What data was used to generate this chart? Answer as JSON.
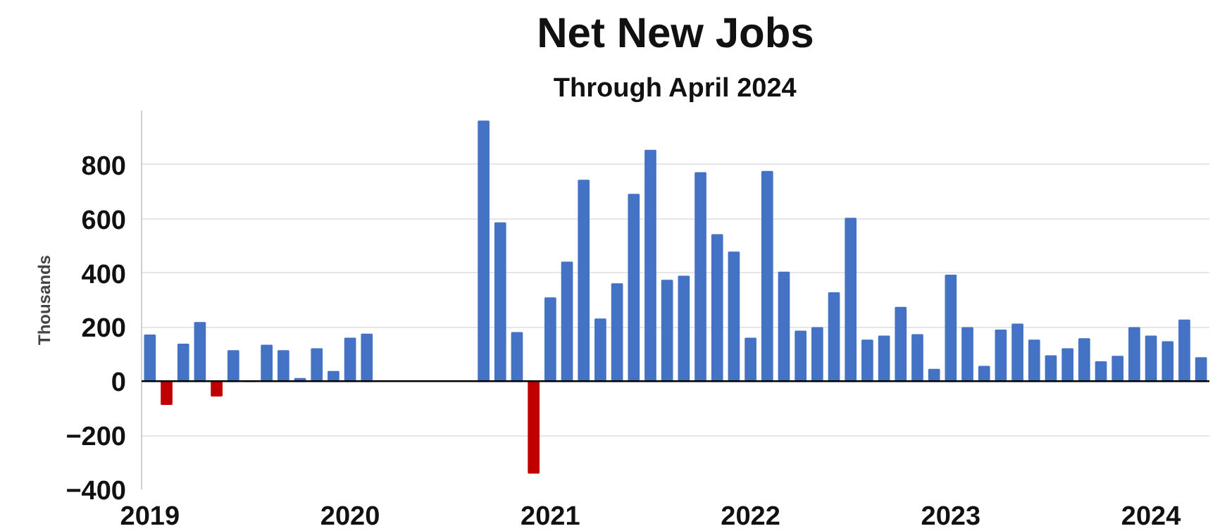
{
  "chart_data": {
    "type": "bar",
    "title": "Net New Jobs",
    "subtitle": "Through April 2024",
    "ylabel": "Thousands",
    "x": [
      "2019-01",
      "2019-02",
      "2019-03",
      "2019-04",
      "2019-05",
      "2019-06",
      "2019-07",
      "2019-08",
      "2019-09",
      "2019-10",
      "2019-11",
      "2019-12",
      "2020-01",
      "2020-02",
      "2020-03",
      "2020-04",
      "2020-05",
      "2020-06",
      "2020-07",
      "2020-08",
      "2020-09",
      "2020-10",
      "2020-11",
      "2020-12",
      "2021-01",
      "2021-02",
      "2021-03",
      "2021-04",
      "2021-05",
      "2021-06",
      "2021-07",
      "2021-08",
      "2021-09",
      "2021-10",
      "2021-11",
      "2021-12",
      "2022-01",
      "2022-02",
      "2022-03",
      "2022-04",
      "2022-05",
      "2022-06",
      "2022-07",
      "2022-08",
      "2022-09",
      "2022-10",
      "2022-11",
      "2022-12",
      "2023-01",
      "2023-02",
      "2023-03",
      "2023-04",
      "2023-05",
      "2023-06",
      "2023-07",
      "2023-08",
      "2023-09",
      "2023-10",
      "2023-11",
      "2023-12",
      "2024-01",
      "2024-02",
      "2024-03",
      "2024-04"
    ],
    "values": [
      170,
      -85,
      136,
      216,
      -54,
      112,
      0,
      132,
      112,
      9,
      119,
      35,
      158,
      173,
      null,
      null,
      null,
      null,
      null,
      null,
      960,
      584,
      179,
      -339,
      307,
      439,
      742,
      229,
      359,
      690,
      852,
      372,
      387,
      770,
      541,
      476,
      158,
      774,
      402,
      184,
      197,
      326,
      601,
      151,
      166,
      272,
      171,
      43,
      391,
      197,
      54,
      188,
      210,
      151,
      93,
      119,
      156,
      71,
      91,
      197,
      166,
      145,
      225,
      86
    ],
    "colors": [
      "#4472c4",
      "#c00000",
      "#4472c4",
      "#4472c4",
      "#c00000",
      "#4472c4",
      "#4472c4",
      "#4472c4",
      "#4472c4",
      "#4472c4",
      "#4472c4",
      "#4472c4",
      "#4472c4",
      "#4472c4",
      "#4472c4",
      "#4472c4",
      "#4472c4",
      "#4472c4",
      "#4472c4",
      "#4472c4",
      "#4472c4",
      "#4472c4",
      "#4472c4",
      "#c00000",
      "#4472c4",
      "#4472c4",
      "#4472c4",
      "#4472c4",
      "#4472c4",
      "#4472c4",
      "#4472c4",
      "#4472c4",
      "#4472c4",
      "#4472c4",
      "#4472c4",
      "#4472c4",
      "#4472c4",
      "#4472c4",
      "#4472c4",
      "#4472c4",
      "#4472c4",
      "#4472c4",
      "#4472c4",
      "#4472c4",
      "#4472c4",
      "#4472c4",
      "#4472c4",
      "#4472c4",
      "#4472c4",
      "#4472c4",
      "#4472c4",
      "#4472c4",
      "#4472c4",
      "#4472c4",
      "#4472c4",
      "#4472c4",
      "#4472c4",
      "#4472c4",
      "#4472c4",
      "#4472c4",
      "#4472c4",
      "#4472c4",
      "#4472c4",
      "#4472c4"
    ],
    "xlim": [
      "2018-12-16",
      "2024-04-16"
    ],
    "xticks": [
      {
        "value": "2019-01",
        "label": "2019"
      },
      {
        "value": "2020-01",
        "label": "2020"
      },
      {
        "value": "2021-01",
        "label": "2021"
      },
      {
        "value": "2022-01",
        "label": "2022"
      },
      {
        "value": "2023-01",
        "label": "2023"
      },
      {
        "value": "2024-01",
        "label": "2024"
      }
    ],
    "ylim": [
      -400,
      1000
    ],
    "yticks": [
      -400,
      -200,
      0,
      200,
      400,
      600,
      800
    ],
    "grid": "y"
  }
}
